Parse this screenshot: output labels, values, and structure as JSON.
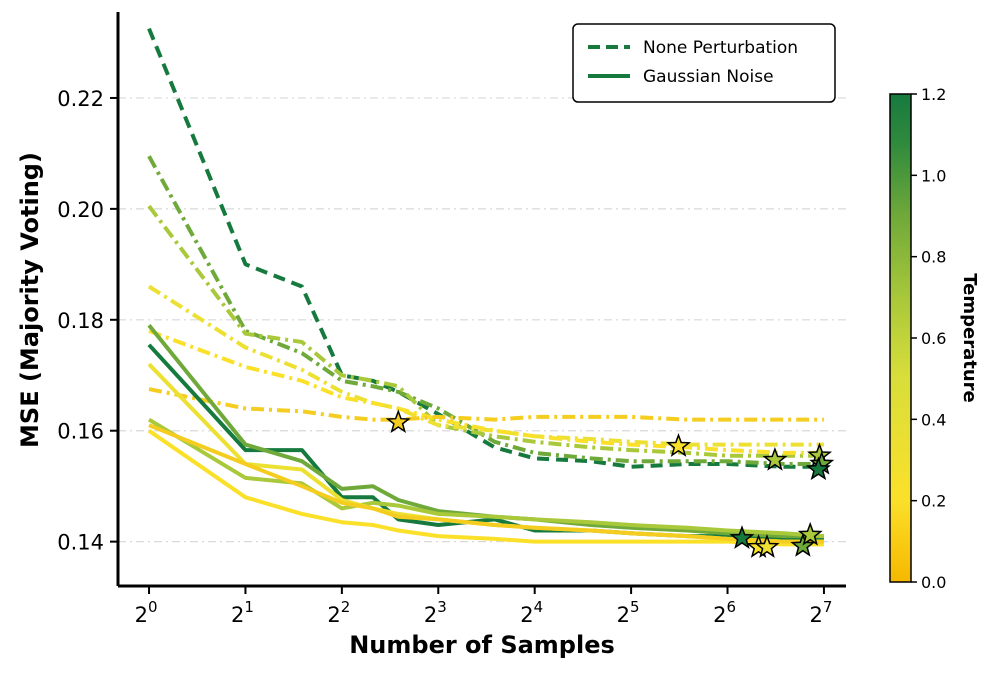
{
  "chart_data": {
    "type": "line",
    "xlabel": "Number of Samples",
    "ylabel": "MSE (Majority Voting)",
    "x_scale": "log2",
    "xlim": [
      0.8,
      150
    ],
    "ylim": [
      0.132,
      0.2355
    ],
    "x_ticks": [
      1,
      2,
      4,
      8,
      16,
      32,
      64,
      128
    ],
    "x_tick_base": "2",
    "x_tick_exponents": [
      "0",
      "1",
      "2",
      "3",
      "4",
      "5",
      "6",
      "7"
    ],
    "y_ticks": [
      0.14,
      0.16,
      0.18,
      0.2,
      0.22
    ],
    "y_tick_labels": [
      "0.14",
      "0.16",
      "0.18",
      "0.20",
      "0.22"
    ],
    "grid": true,
    "legend": {
      "position": "top-right",
      "entries": [
        {
          "label": "None Perturbation",
          "style": "dashed",
          "color": "#167a3e"
        },
        {
          "label": "Gaussian Noise",
          "style": "solid",
          "color": "#167a3e"
        }
      ]
    },
    "colorbar": {
      "label": "Temperature",
      "min": 0.0,
      "max": 1.2,
      "ticks": [
        "0.0",
        "0.2",
        "0.4",
        "0.6",
        "0.8",
        "1.0",
        "1.2"
      ],
      "colors": [
        "#f6b800",
        "#fbe02a",
        "#d8de3a",
        "#a9c83a",
        "#6fa93a",
        "#2f8a3c",
        "#167a3e"
      ]
    },
    "x": [
      1,
      2,
      3,
      4,
      5,
      6,
      8,
      12,
      16,
      24,
      32,
      48,
      64,
      96,
      128
    ],
    "series": [
      {
        "name": "None Perturbation",
        "temperature": 1.2,
        "style": "dashed",
        "color": "#167a3e",
        "values": [
          0.2325,
          0.19,
          0.186,
          0.17,
          0.169,
          0.167,
          0.163,
          0.157,
          0.155,
          0.1545,
          0.1535,
          0.154,
          0.154,
          0.1535,
          0.1535
        ]
      },
      {
        "name": "None Perturbation",
        "temperature": 1.0,
        "style": "dashdot",
        "color": "#6fa93a",
        "values": [
          0.2095,
          0.178,
          0.174,
          0.169,
          0.168,
          0.167,
          0.164,
          0.158,
          0.156,
          0.155,
          0.1545,
          0.1545,
          0.1545,
          0.154,
          0.154
        ]
      },
      {
        "name": "None Perturbation",
        "temperature": 0.8,
        "style": "dashdot",
        "color": "#a9c83a",
        "values": [
          0.2005,
          0.1775,
          0.176,
          0.17,
          0.169,
          0.168,
          0.161,
          0.159,
          0.158,
          0.157,
          0.1565,
          0.156,
          0.1555,
          0.1555,
          0.1555
        ]
      },
      {
        "name": "None Perturbation",
        "temperature": 0.6,
        "style": "dashdot",
        "color": "#ece033",
        "values": [
          0.186,
          0.175,
          0.171,
          0.167,
          0.165,
          0.164,
          0.161,
          0.16,
          0.159,
          0.1585,
          0.158,
          0.1575,
          0.1575,
          0.1575,
          0.1575
        ]
      },
      {
        "name": "None Perturbation",
        "temperature": 0.4,
        "style": "dashdot",
        "color": "#fbe02a",
        "values": [
          0.178,
          0.1715,
          0.169,
          0.166,
          0.165,
          0.164,
          0.162,
          0.16,
          0.159,
          0.158,
          0.1575,
          0.157,
          0.1565,
          0.156,
          0.156
        ]
      },
      {
        "name": "None Perturbation",
        "temperature": 0.2,
        "style": "dashdot",
        "color": "#f5cd20",
        "values": [
          0.1675,
          0.164,
          0.1635,
          0.1625,
          0.162,
          0.162,
          0.1625,
          0.162,
          0.1625,
          0.1625,
          0.1625,
          0.162,
          0.162,
          0.162,
          0.162
        ]
      },
      {
        "name": "Gaussian Noise",
        "temperature": 1.2,
        "style": "solid",
        "color": "#167a3e",
        "values": [
          0.1755,
          0.1565,
          0.1565,
          0.148,
          0.148,
          0.144,
          0.143,
          0.144,
          0.142,
          0.142,
          0.1415,
          0.141,
          0.141,
          0.1405,
          0.1405
        ]
      },
      {
        "name": "Gaussian Noise",
        "temperature": 1.0,
        "style": "solid",
        "color": "#6fa93a",
        "values": [
          0.179,
          0.1575,
          0.1545,
          0.1495,
          0.15,
          0.1475,
          0.1455,
          0.1445,
          0.144,
          0.143,
          0.1425,
          0.142,
          0.1415,
          0.141,
          0.141
        ]
      },
      {
        "name": "Gaussian Noise",
        "temperature": 0.8,
        "style": "solid",
        "color": "#a9c83a",
        "values": [
          0.162,
          0.1515,
          0.1505,
          0.146,
          0.147,
          0.1465,
          0.145,
          0.1445,
          0.144,
          0.1435,
          0.143,
          0.1425,
          0.142,
          0.1415,
          0.141
        ]
      },
      {
        "name": "Gaussian Noise",
        "temperature": 0.6,
        "style": "solid",
        "color": "#ece033",
        "values": [
          0.172,
          0.154,
          0.153,
          0.1475,
          0.146,
          0.145,
          0.144,
          0.143,
          0.1425,
          0.142,
          0.1415,
          0.141,
          0.1405,
          0.14,
          0.14
        ]
      },
      {
        "name": "Gaussian Noise",
        "temperature": 0.4,
        "style": "solid",
        "color": "#fbe02a",
        "values": [
          0.16,
          0.148,
          0.145,
          0.1435,
          0.143,
          0.142,
          0.141,
          0.1405,
          0.14,
          0.14,
          0.14,
          0.14,
          0.14,
          0.1395,
          0.1395
        ]
      },
      {
        "name": "Gaussian Noise",
        "temperature": 0.2,
        "style": "solid",
        "color": "#f5cd20",
        "values": [
          0.161,
          0.154,
          0.15,
          0.147,
          0.146,
          0.1445,
          0.144,
          0.143,
          0.1425,
          0.142,
          0.1415,
          0.141,
          0.1405,
          0.14,
          0.14
        ]
      }
    ],
    "best_markers": [
      {
        "x": 6,
        "y": 0.1615,
        "color": "#f5cd20"
      },
      {
        "x": 45,
        "y": 0.1572,
        "color": "#fbe02a"
      },
      {
        "x": 90,
        "y": 0.1547,
        "color": "#a9c83a"
      },
      {
        "x": 124,
        "y": 0.1555,
        "color": "#a9c83a"
      },
      {
        "x": 126,
        "y": 0.154,
        "color": "#6fa93a"
      },
      {
        "x": 123,
        "y": 0.153,
        "color": "#167a3e"
      },
      {
        "x": 71,
        "y": 0.1406,
        "color": "#167a3e"
      },
      {
        "x": 80,
        "y": 0.139,
        "color": "#fbe02a"
      },
      {
        "x": 85,
        "y": 0.139,
        "color": "#ece033"
      },
      {
        "x": 110,
        "y": 0.1392,
        "color": "#6fa93a"
      },
      {
        "x": 116,
        "y": 0.1412,
        "color": "#a9c83a"
      }
    ]
  }
}
